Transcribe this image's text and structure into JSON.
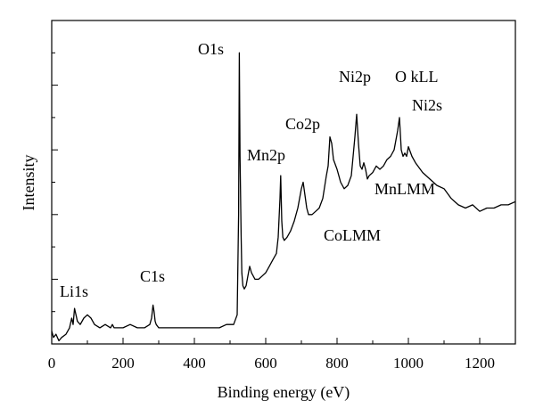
{
  "chart_data": {
    "type": "line",
    "xlabel": "Binding energy (eV)",
    "ylabel": "Intensity",
    "xlim": [
      0,
      1300
    ],
    "ylim": [
      0,
      100
    ],
    "xticks": [
      0,
      200,
      400,
      600,
      800,
      1000,
      1200
    ],
    "xtick_labels": [
      "0",
      "200",
      "400",
      "600",
      "800",
      "1000",
      "1200"
    ],
    "grid": false,
    "legend": "none",
    "line_color": "#000000",
    "series": [
      {
        "x": [
          0,
          5,
          12,
          20,
          28,
          40,
          50,
          56,
          60,
          64,
          68,
          72,
          80,
          90,
          100,
          110,
          115,
          120,
          135,
          150,
          165,
          170,
          175,
          185,
          200,
          220,
          240,
          260,
          275,
          280,
          284,
          287,
          290,
          293,
          300,
          320,
          350,
          380,
          410,
          440,
          470,
          490,
          500,
          510,
          520,
          524,
          526,
          528,
          531,
          533,
          536,
          540,
          545,
          550,
          555,
          560,
          570,
          580,
          590,
          600,
          610,
          620,
          630,
          635,
          640,
          642,
          645,
          648,
          652,
          660,
          670,
          680,
          690,
          700,
          705,
          710,
          715,
          720,
          730,
          740,
          750,
          760,
          770,
          775,
          780,
          785,
          790,
          800,
          810,
          820,
          830,
          840,
          845,
          850,
          855,
          860,
          865,
          870,
          875,
          880,
          885,
          890,
          900,
          910,
          920,
          930,
          940,
          950,
          960,
          970,
          975,
          980,
          985,
          990,
          995,
          1000,
          1010,
          1020,
          1040,
          1060,
          1080,
          1100,
          1120,
          1140,
          1160,
          1180,
          1200,
          1220,
          1240,
          1260,
          1280,
          1300
        ],
        "y": [
          4,
          2,
          3,
          1,
          2,
          3,
          5,
          8,
          6,
          11,
          9,
          7,
          6,
          8,
          9,
          8,
          7,
          6,
          5,
          6,
          5,
          6,
          5,
          5,
          5,
          6,
          5,
          5,
          6,
          8,
          12,
          10,
          7,
          6,
          5,
          5,
          5,
          5,
          5,
          5,
          5,
          6,
          6,
          6,
          9,
          40,
          90,
          58,
          34,
          22,
          18,
          17,
          18,
          21,
          24,
          22,
          20,
          20,
          21,
          22,
          24,
          26,
          28,
          33,
          45,
          52,
          38,
          33,
          32,
          33,
          35,
          38,
          42,
          48,
          50,
          46,
          42,
          40,
          40,
          41,
          42,
          45,
          52,
          55,
          64,
          62,
          57,
          54,
          50,
          48,
          49,
          52,
          58,
          64,
          71,
          62,
          55,
          54,
          56,
          54,
          51,
          52,
          53,
          55,
          54,
          55,
          57,
          58,
          60,
          66,
          70,
          60,
          58,
          59,
          58,
          61,
          58,
          56,
          53,
          51,
          49,
          48,
          45,
          43,
          42,
          43,
          41,
          42,
          42,
          43,
          43,
          44
        ]
      }
    ],
    "annotations": [
      {
        "text": "Li1s",
        "x": 65
      },
      {
        "text": "C1s",
        "x": 285
      },
      {
        "text": "O1s",
        "x": 530
      },
      {
        "text": "Mn2p",
        "x": 645
      },
      {
        "text": "Co2p",
        "x": 780
      },
      {
        "text": "CoLMM",
        "x": 770
      },
      {
        "text": "Ni2p",
        "x": 855
      },
      {
        "text": "O kLL",
        "x": 975
      },
      {
        "text": "Ni2s",
        "x": 1005
      },
      {
        "text": "MnLMM",
        "x": 900
      }
    ]
  }
}
